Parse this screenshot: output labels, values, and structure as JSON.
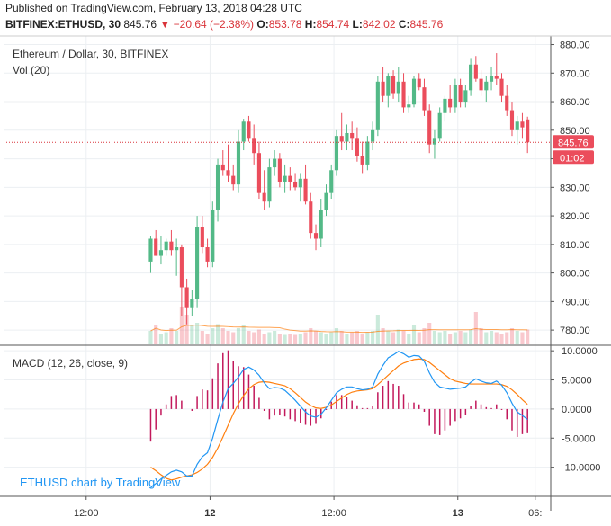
{
  "header": {
    "published": "Published on TradingView.com, February 13, 2018 04:28 UTC",
    "symbol": "BITFINEX:ETHUSD, 30",
    "last": "845.76",
    "change": "−20.64 (−2.38%)",
    "o_label": "O:",
    "o_value": "853.78",
    "h_label": "H:",
    "h_value": "854.74",
    "l_label": "L:",
    "l_value": "842.02",
    "c_label": "C:",
    "c_value": "845.76"
  },
  "legend": {
    "title": "Ethereum / Dollar, 30, BITFINEX",
    "volume": "Vol (20)",
    "macd": "MACD (12, 26, close, 9)"
  },
  "price_axis": [
    "880.00",
    "870.00",
    "860.00",
    "850.00",
    "840.00",
    "830.00",
    "820.00",
    "810.00",
    "800.00",
    "790.00",
    "780.00"
  ],
  "price_tag": "845.76",
  "countdown_tag": "01:02",
  "macd_axis": [
    "10.0000",
    "5.0000",
    "0.0000",
    "-5.0000",
    "-10.0000"
  ],
  "time_axis": [
    "12:00",
    "12",
    "12:00",
    "13",
    "06:"
  ],
  "watermark": "ETHUSD chart by TradingView",
  "colors": {
    "up": "#53b987",
    "down": "#eb4d5c",
    "macd": "#2196f3",
    "signal": "#ff7f0e",
    "hist": "#c2185b"
  },
  "chart_data": {
    "type": "candlestick",
    "timeframe": "30",
    "ylim": [
      775,
      883
    ],
    "candles": [
      [
        804,
        813,
        800,
        812
      ],
      [
        812,
        815,
        806,
        806
      ],
      [
        806,
        813,
        803,
        808
      ],
      [
        808,
        812,
        806,
        811
      ],
      [
        811,
        815,
        806,
        808
      ],
      [
        808,
        812,
        799,
        809
      ],
      [
        809,
        810,
        785,
        795
      ],
      [
        795,
        798,
        782,
        788
      ],
      [
        788,
        794,
        785,
        791
      ],
      [
        791,
        820,
        788,
        816
      ],
      [
        816,
        820,
        807,
        809
      ],
      [
        809,
        812,
        802,
        804
      ],
      [
        804,
        825,
        802,
        822
      ],
      [
        822,
        840,
        818,
        838
      ],
      [
        838,
        843,
        834,
        836
      ],
      [
        836,
        845,
        832,
        834
      ],
      [
        834,
        838,
        829,
        831
      ],
      [
        831,
        850,
        828,
        846
      ],
      [
        846,
        854,
        843,
        853
      ],
      [
        853,
        855,
        846,
        847
      ],
      [
        847,
        852,
        838,
        842
      ],
      [
        842,
        846,
        826,
        828
      ],
      [
        828,
        836,
        822,
        825
      ],
      [
        825,
        840,
        823,
        837
      ],
      [
        837,
        843,
        834,
        840
      ],
      [
        840,
        842,
        830,
        832
      ],
      [
        832,
        838,
        828,
        834
      ],
      [
        834,
        837,
        829,
        832
      ],
      [
        832,
        835,
        829,
        830
      ],
      [
        830,
        835,
        825,
        833
      ],
      [
        833,
        838,
        824,
        825
      ],
      [
        825,
        828,
        812,
        814
      ],
      [
        814,
        817,
        808,
        812
      ],
      [
        812,
        826,
        809,
        822
      ],
      [
        822,
        831,
        820,
        828
      ],
      [
        828,
        838,
        826,
        836
      ],
      [
        836,
        850,
        834,
        848
      ],
      [
        848,
        856,
        843,
        846
      ],
      [
        846,
        852,
        843,
        849
      ],
      [
        849,
        853,
        843,
        847
      ],
      [
        847,
        851,
        839,
        841
      ],
      [
        841,
        846,
        835,
        838
      ],
      [
        838,
        848,
        836,
        846
      ],
      [
        846,
        853,
        843,
        850
      ],
      [
        850,
        869,
        848,
        867
      ],
      [
        867,
        872,
        860,
        862
      ],
      [
        862,
        870,
        858,
        869
      ],
      [
        869,
        871,
        861,
        863
      ],
      [
        863,
        872,
        860,
        867
      ],
      [
        867,
        870,
        856,
        858
      ],
      [
        858,
        862,
        856,
        859
      ],
      [
        859,
        869,
        858,
        868
      ],
      [
        868,
        870,
        864,
        865
      ],
      [
        865,
        868,
        855,
        857
      ],
      [
        857,
        859,
        842,
        845
      ],
      [
        845,
        850,
        840,
        847
      ],
      [
        847,
        858,
        846,
        856
      ],
      [
        856,
        862,
        853,
        861
      ],
      [
        861,
        866,
        856,
        858
      ],
      [
        858,
        868,
        856,
        866
      ],
      [
        866,
        868,
        858,
        860
      ],
      [
        860,
        866,
        858,
        864
      ],
      [
        864,
        875,
        862,
        873
      ],
      [
        873,
        876,
        867,
        868
      ],
      [
        868,
        871,
        862,
        864
      ],
      [
        864,
        869,
        860,
        867
      ],
      [
        867,
        872,
        864,
        869
      ],
      [
        869,
        877,
        866,
        868
      ],
      [
        868,
        870,
        860,
        862
      ],
      [
        862,
        866,
        855,
        857
      ],
      [
        857,
        860,
        848,
        850
      ],
      [
        850,
        855,
        845,
        853
      ],
      [
        853,
        856,
        847,
        851
      ],
      [
        853.78,
        854.74,
        842.02,
        845.76
      ]
    ],
    "volume": [
      10,
      14,
      8,
      9,
      12,
      10,
      28,
      22,
      14,
      16,
      10,
      8,
      12,
      15,
      12,
      10,
      9,
      12,
      14,
      10,
      9,
      11,
      8,
      9,
      10,
      8,
      7,
      8,
      7,
      8,
      9,
      12,
      10,
      9,
      8,
      9,
      12,
      10,
      8,
      9,
      10,
      8,
      9,
      10,
      22,
      12,
      10,
      9,
      11,
      10,
      8,
      14,
      9,
      12,
      16,
      10,
      9,
      10,
      8,
      9,
      10,
      9,
      11,
      24,
      12,
      9,
      10,
      9,
      8,
      9,
      12,
      10,
      9,
      11
    ],
    "macd": [
      -13.5,
      -12.8,
      -12.0,
      -11.4,
      -10.8,
      -10.5,
      -10.8,
      -11.5,
      -11.5,
      -9.5,
      -8.2,
      -7.5,
      -5.0,
      -1.8,
      1.2,
      3.5,
      4.4,
      5.5,
      6.8,
      7.2,
      6.7,
      5.8,
      4.5,
      3.5,
      3.7,
      3.6,
      3.2,
      2.4,
      1.5,
      0.5,
      -0.5,
      -1.2,
      -1.4,
      -0.9,
      0.2,
      1.5,
      2.8,
      3.4,
      3.8,
      3.8,
      3.5,
      3.3,
      3.4,
      3.8,
      6.0,
      7.5,
      8.8,
      9.3,
      9.9,
      9.5,
      8.9,
      9.2,
      9.1,
      8.2,
      6.2,
      4.6,
      3.8,
      3.6,
      3.4,
      3.5,
      3.6,
      3.8,
      4.6,
      5.2,
      4.8,
      4.5,
      4.4,
      4.8,
      4.1,
      2.8,
      1.0,
      -0.5,
      -1.1,
      -1.8
    ],
    "signal": [
      -10.0,
      -10.6,
      -11.3,
      -11.9,
      -12.2,
      -12.0,
      -11.7,
      -11.5,
      -11.3,
      -10.9,
      -10.3,
      -9.5,
      -8.3,
      -6.7,
      -4.8,
      -2.8,
      -0.8,
      0.9,
      2.3,
      3.5,
      4.2,
      4.6,
      4.7,
      4.6,
      4.4,
      4.2,
      4.0,
      3.5,
      2.8,
      2.0,
      1.2,
      0.6,
      0.2,
      0.1,
      0.3,
      0.7,
      1.3,
      1.9,
      2.5,
      2.9,
      3.1,
      3.2,
      3.3,
      3.5,
      4.2,
      5.0,
      5.8,
      6.6,
      7.4,
      7.9,
      8.2,
      8.5,
      8.6,
      8.5,
      8.0,
      7.3,
      6.6,
      5.9,
      5.2,
      4.8,
      4.6,
      4.4,
      4.3,
      4.3,
      4.3,
      4.3,
      4.3,
      4.3,
      4.2,
      3.9,
      3.3,
      2.5,
      1.6,
      0.8
    ],
    "macd_ylim": [
      -15,
      10.8
    ],
    "x_ticks": [
      {
        "i": 16,
        "label": "12:00"
      },
      {
        "i": 40,
        "label": "12"
      },
      {
        "i": 64,
        "label": "12:00"
      },
      {
        "i": 88,
        "label": "13"
      },
      {
        "i": 103,
        "label": "06:"
      }
    ]
  }
}
